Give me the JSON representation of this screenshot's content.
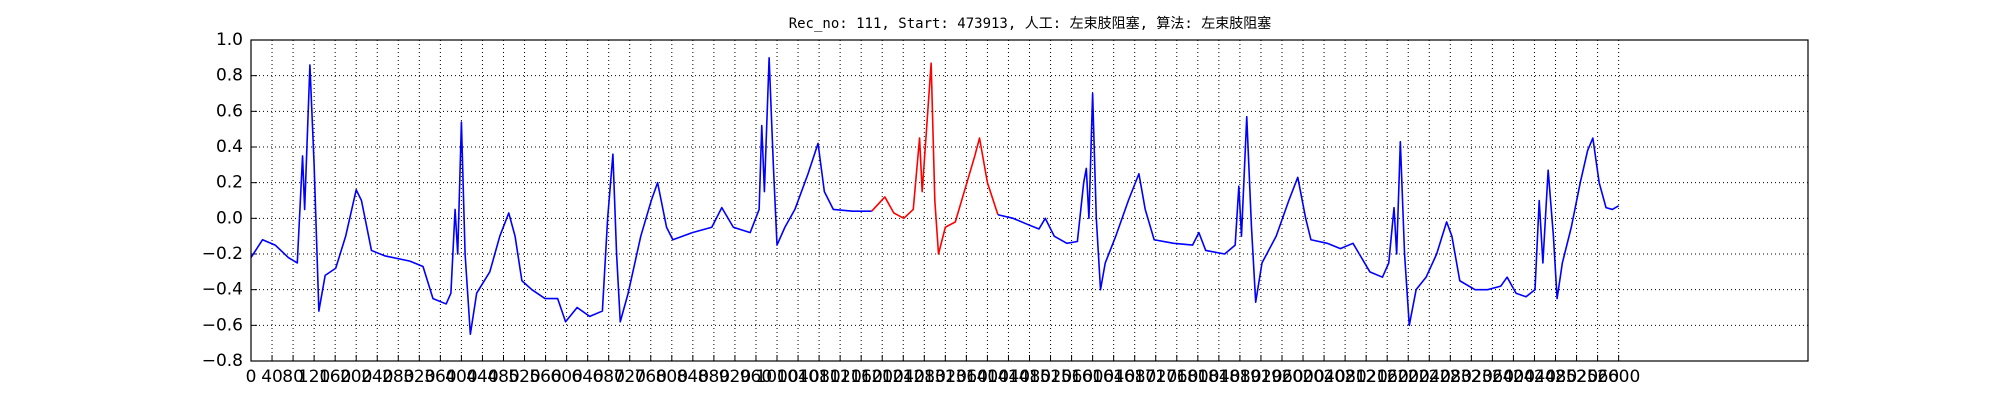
{
  "chart_data": {
    "type": "line",
    "title": "Rec_no: 111, Start: 473913, 人工: 左束肢阻塞, 算法: 左束肢阻塞",
    "xlim": [
      0,
      2960
    ],
    "ylim": [
      -0.8,
      1.0
    ],
    "xticks": [
      0,
      40,
      80,
      120,
      160,
      200,
      240,
      280,
      320,
      360,
      400,
      440,
      480,
      520,
      560,
      600,
      640,
      680,
      720,
      760,
      800,
      840,
      880,
      920,
      960,
      1000,
      1040,
      1080,
      1120,
      1160,
      1200,
      1240,
      1280,
      1320,
      1360,
      1400,
      1440,
      1480,
      1520,
      1560,
      1600,
      1640,
      1680,
      1720,
      1760,
      1800,
      1840,
      1880,
      1920,
      1960,
      2000,
      2040,
      2080,
      2120,
      2160,
      2200,
      2240,
      2280,
      2320,
      2360,
      2400,
      2440,
      2480,
      2520,
      2560,
      2600
    ],
    "yticks": [
      {
        "value": -0.8,
        "label": "−0.8"
      },
      {
        "value": -0.6,
        "label": "−0.6"
      },
      {
        "value": -0.4,
        "label": "−0.4"
      },
      {
        "value": -0.2,
        "label": "−0.2"
      },
      {
        "value": 0,
        "label": "0.0"
      },
      0.2,
      0.4,
      0.6,
      0.8,
      {
        "value": 1,
        "label": "1.0"
      }
    ],
    "grid": true,
    "series": [
      {
        "color": "#0000ff",
        "x": [
          0,
          22,
          46,
          71,
          88,
          98,
          102,
          112,
          120,
          129,
          141,
          161,
          180,
          200,
          210,
          229,
          254,
          302,
          327,
          346,
          371,
          380,
          388,
          393,
          400,
          407,
          417,
          429,
          454,
          473,
          490,
          502,
          515,
          534,
          559,
          583,
          598,
          620,
          644,
          668,
          678,
          688,
          695,
          702,
          717,
          741,
          761,
          773,
          790,
          802,
          839,
          876,
          895,
          917,
          949,
          966,
          971,
          976,
          985,
          993,
          1000,
          1015,
          1034,
          1059,
          1078,
          1090,
          1107,
          1144,
          1180
        ],
        "values": [
          -0.22,
          -0.12,
          -0.15,
          -0.22,
          -0.25,
          0.35,
          0.05,
          0.86,
          0.3,
          -0.52,
          -0.32,
          -0.28,
          -0.1,
          0.16,
          0.1,
          -0.18,
          -0.21,
          -0.24,
          -0.27,
          -0.45,
          -0.48,
          -0.42,
          0.05,
          -0.2,
          0.54,
          -0.2,
          -0.65,
          -0.42,
          -0.3,
          -0.1,
          0.03,
          -0.1,
          -0.35,
          -0.4,
          -0.45,
          -0.45,
          -0.58,
          -0.5,
          -0.55,
          -0.52,
          0.0,
          0.36,
          -0.2,
          -0.58,
          -0.42,
          -0.1,
          0.1,
          0.2,
          -0.05,
          -0.12,
          -0.08,
          -0.05,
          0.06,
          -0.05,
          -0.08,
          0.05,
          0.52,
          0.15,
          0.9,
          0.3,
          -0.15,
          -0.05,
          0.05,
          0.25,
          0.42,
          0.15,
          0.05,
          0.04,
          0.04
        ]
      },
      {
        "color": "#ff0000",
        "x": [
          1180,
          1205,
          1222,
          1241,
          1259,
          1271,
          1276,
          1293,
          1300,
          1307,
          1320,
          1339,
          1356,
          1376,
          1385,
          1400,
          1420
        ],
        "values": [
          0.04,
          0.12,
          0.03,
          0.0,
          0.05,
          0.45,
          0.15,
          0.87,
          0.1,
          -0.2,
          -0.05,
          -0.02,
          0.15,
          0.35,
          0.45,
          0.2,
          0.02
        ]
      },
      {
        "color": "#0000ff",
        "x": [
          1420,
          1449,
          1473,
          1498,
          1510,
          1527,
          1551,
          1571,
          1583,
          1588,
          1593,
          1600,
          1607,
          1615,
          1624,
          1644,
          1668,
          1688,
          1700,
          1717,
          1754,
          1790,
          1802,
          1815,
          1851,
          1871,
          1878,
          1883,
          1893,
          1902,
          1910,
          1922,
          1949,
          1973,
          1990,
          2005,
          2015,
          2046,
          2071,
          2095,
          2107,
          2127,
          2151,
          2163,
          2173,
          2178,
          2185,
          2193,
          2202,
          2215,
          2234,
          2254,
          2273,
          2283,
          2298,
          2327,
          2351,
          2376,
          2388,
          2405,
          2424,
          2441,
          2449,
          2456,
          2466,
          2476,
          2483,
          2493,
          2510,
          2527,
          2541,
          2551,
          2563,
          2576,
          2588,
          2600
        ],
        "values": [
          0.02,
          0.0,
          -0.03,
          -0.06,
          0.0,
          -0.1,
          -0.14,
          -0.13,
          0.2,
          0.28,
          0.0,
          0.7,
          0.0,
          -0.4,
          -0.25,
          -0.1,
          0.1,
          0.25,
          0.05,
          -0.12,
          -0.14,
          -0.15,
          -0.08,
          -0.18,
          -0.2,
          -0.15,
          0.18,
          -0.1,
          0.57,
          -0.05,
          -0.47,
          -0.25,
          -0.1,
          0.1,
          0.23,
          0.0,
          -0.12,
          -0.14,
          -0.17,
          -0.14,
          -0.2,
          -0.3,
          -0.33,
          -0.25,
          0.06,
          -0.2,
          0.43,
          -0.2,
          -0.6,
          -0.4,
          -0.33,
          -0.2,
          -0.02,
          -0.1,
          -0.35,
          -0.4,
          -0.4,
          -0.38,
          -0.33,
          -0.42,
          -0.44,
          -0.4,
          0.1,
          -0.25,
          0.27,
          -0.1,
          -0.45,
          -0.25,
          -0.05,
          0.2,
          0.38,
          0.45,
          0.2,
          0.06,
          0.05,
          0.07
        ]
      }
    ]
  }
}
